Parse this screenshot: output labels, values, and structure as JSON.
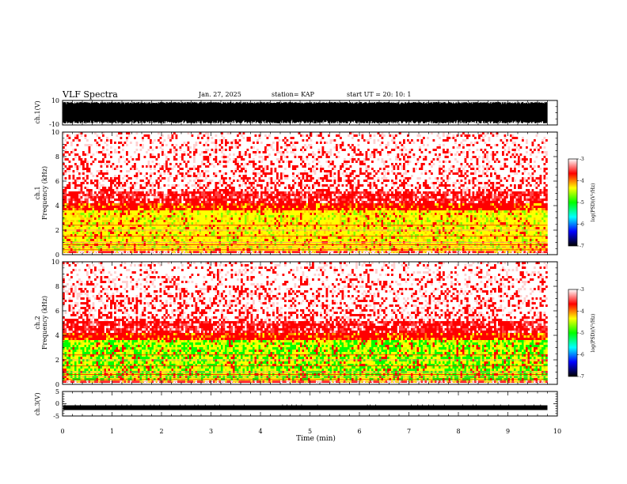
{
  "header": {
    "title": "VLF Spectra",
    "date": "Jan. 27, 2025",
    "station": "station= KAP",
    "start": "start  UT  =   20: 10: 1"
  },
  "chart_data": [
    {
      "type": "line",
      "name": "ch1-waveform",
      "ylabel": "ch.1(V)",
      "ylim": [
        -10,
        10
      ],
      "yticks": [
        "10",
        "-10"
      ],
      "xlim": [
        0,
        10
      ]
    },
    {
      "type": "heatmap",
      "name": "ch1-spectrogram",
      "ylabel": "ch.1\nFrequency  (kHz)",
      "ylabel_top": "ch.1",
      "ylabel_bottom": "Frequency  (kHz)",
      "ylim": [
        0,
        10
      ],
      "yticks": [
        "0",
        "2",
        "4",
        "6",
        "8",
        "10"
      ],
      "xlim": [
        0,
        10
      ],
      "data_extent_min": 9.8,
      "colorbar": {
        "label": "log(PSD)(V²/Hz)",
        "range": [
          -7,
          -3
        ],
        "ticks": [
          "-3",
          "-4",
          "-5",
          "-6",
          "-7"
        ],
        "colors": [
          "#ffffff",
          "#ff0000",
          "#ffff00",
          "#00ff00",
          "#00ffff",
          "#0000ff",
          "#000000"
        ]
      }
    },
    {
      "type": "heatmap",
      "name": "ch2-spectrogram",
      "ylabel": "ch.2\nFrequency  (kHz)",
      "ylabel_top": "ch.2",
      "ylabel_bottom": "Frequency  (kHz)",
      "ylim": [
        0,
        10
      ],
      "yticks": [
        "0",
        "2",
        "4",
        "6",
        "8",
        "10"
      ],
      "xlim": [
        0,
        10
      ],
      "data_extent_min": 9.8,
      "colorbar": {
        "label": "log(PSD)(V²/Hz)",
        "range": [
          -7,
          -3
        ],
        "ticks": [
          "-3",
          "-4",
          "-5",
          "-6",
          "-7"
        ],
        "colors": [
          "#ffffff",
          "#ff0000",
          "#ffff00",
          "#00ff00",
          "#00ffff",
          "#0000ff",
          "#000000"
        ]
      }
    },
    {
      "type": "line",
      "name": "ch3-waveform",
      "ylabel": "ch.3(V)",
      "ylim": [
        -5,
        5
      ],
      "yticks": [
        "5",
        "0",
        "-5"
      ],
      "xlim": [
        0,
        10
      ]
    }
  ],
  "xaxis": {
    "label": "Time  (min)",
    "ticks": [
      "0",
      "1",
      "2",
      "3",
      "4",
      "5",
      "6",
      "7",
      "8",
      "9",
      "10"
    ]
  }
}
